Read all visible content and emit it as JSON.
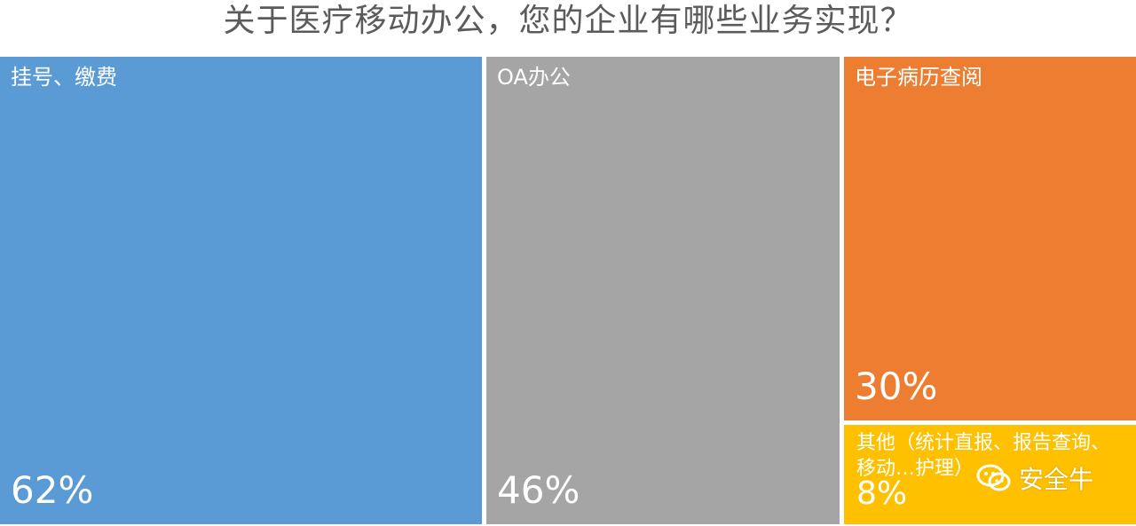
{
  "chart_data": {
    "type": "treemap",
    "title": "关于医疗移动办公，您的企业有哪些业务实现？",
    "items": [
      {
        "label": "挂号、缴费",
        "value": 62,
        "value_label": "62%",
        "color": "#5B9BD5"
      },
      {
        "label": "OA办公",
        "value": 46,
        "value_label": "46%",
        "color": "#A5A5A5"
      },
      {
        "label": "电子病历查阅",
        "value": 30,
        "value_label": "30%",
        "color": "#ED7D31"
      },
      {
        "label": "其他（统计直报、报告查询、移动…护理）",
        "value": 8,
        "value_label": "8%",
        "color": "#FFC000"
      }
    ]
  },
  "watermark": {
    "icon": "wechat-icon",
    "text": "安全牛"
  }
}
